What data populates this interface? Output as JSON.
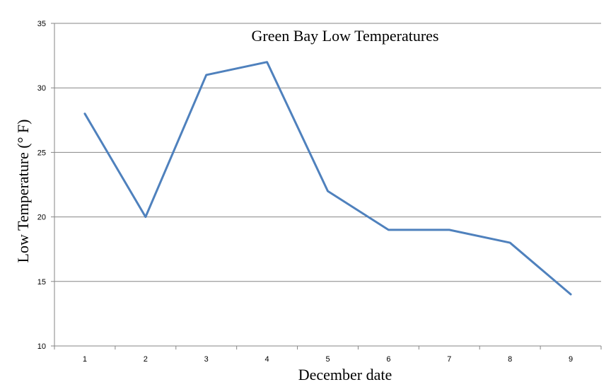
{
  "chart_data": {
    "type": "line",
    "title": "Green Bay Low Temperatures",
    "xlabel": "December date",
    "ylabel": "Low Temperature (° F)",
    "categories": [
      "1",
      "2",
      "3",
      "4",
      "5",
      "6",
      "7",
      "8",
      "9"
    ],
    "series": [
      {
        "values": [
          28,
          20,
          31,
          32,
          22,
          19,
          19,
          18,
          14
        ]
      }
    ],
    "ylim": [
      10,
      35
    ],
    "yticks": [
      "10",
      "15",
      "20",
      "25",
      "30",
      "35"
    ],
    "grid": true,
    "legend": "none",
    "line_color": "#4F81BD"
  }
}
